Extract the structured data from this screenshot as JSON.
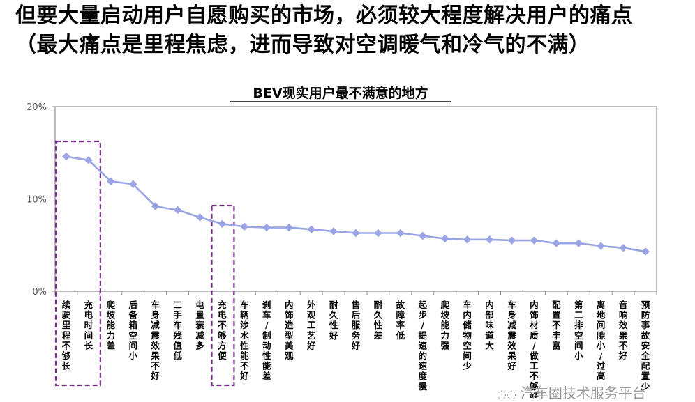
{
  "headline": {
    "line1": "但要大量启动用户自愿购买的市场，必须较大程度解决用户的痛点",
    "line2": "（最大痛点是里程焦虑，进而导致对空调暖气和冷气的不满）"
  },
  "watermark": {
    "text": "汽车圈技术服务平台",
    "icon": "wechat-icon"
  },
  "chart_data": {
    "type": "line",
    "title": "BEV现实用户最不满意的地方",
    "xlabel": "",
    "ylabel": "",
    "ylim": [
      0,
      20
    ],
    "yticks": [
      "0%",
      "10%",
      "20%"
    ],
    "grid": false,
    "legend": "none",
    "marker": "diamond",
    "series_color": "#9aa3e3",
    "highlight_color": "#7b2c8f",
    "highlight_indices": [
      [
        0,
        1
      ],
      [
        7,
        7
      ]
    ],
    "categories": [
      "续驶里程不够长",
      "充电时间长",
      "爬坡能力差",
      "后备箱空间小",
      "车身减震效果不好",
      "二手车残值低",
      "电量衰减多",
      "充电不够方便",
      "车辆涉水性能不好",
      "刹车/制动性能差",
      "内饰造型美观",
      "外观工艺好",
      "耐久性好",
      "售后服务好",
      "耐久性差",
      "故障率低",
      "起步/提速的速度慢",
      "爬坡能力强",
      "车内储物空间少",
      "内部味道大",
      "车身减震效果好",
      "内饰材质/做工不够好",
      "配置不丰富",
      "第二排空间小",
      "离地间隙小/过高",
      "音响效果不好",
      "预防事故安全配置少"
    ],
    "series": [
      {
        "values": [
          14.6,
          14.2,
          11.9,
          11.6,
          9.2,
          8.8,
          8.0,
          7.3,
          7.0,
          6.9,
          6.9,
          6.7,
          6.5,
          6.3,
          6.3,
          6.3,
          6.0,
          5.7,
          5.6,
          5.6,
          5.5,
          5.5,
          5.2,
          5.2,
          4.9,
          4.7,
          4.3
        ]
      }
    ]
  }
}
